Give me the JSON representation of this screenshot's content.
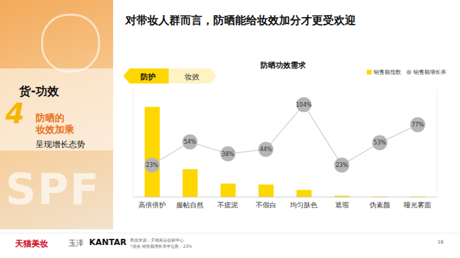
{
  "slide": {
    "title": "对带妆人群而言，防晒能给妆效加分才更受欢迎",
    "page": "16",
    "panel": {
      "section": "货-功效",
      "number": "4",
      "headline": [
        "防晒的",
        "妆效加乘"
      ],
      "subline": "呈现增长态势",
      "bg_text": "SPF"
    },
    "footer": {
      "logos": [
        "天猫美妆",
        "玉泽",
        "KANTAR"
      ],
      "notes": [
        "数据来源：天猫新品创新中心",
        "*虚点 销售额增长率中位数：23%"
      ]
    }
  },
  "chart_data": {
    "type": "bar",
    "title": "防晒功效需求",
    "annotations": [
      "防护",
      "妆效"
    ],
    "categories": [
      "高倍倍护",
      "服帖自然",
      "不搓泥",
      "不假白",
      "均匀肤色",
      "遮瑕",
      "伪素颜",
      "哑光雾面"
    ],
    "series": [
      {
        "name": "销售额指数",
        "type": "bar",
        "color": "#FFD700",
        "values": [
          100,
          31,
          15,
          14,
          8,
          1.5,
          0.8,
          0.8
        ]
      },
      {
        "name": "销售额增长率",
        "type": "line",
        "axis": "y2",
        "color": "#B5B5B5",
        "marker": "circle",
        "data_labels": true,
        "values": [
          23,
          54,
          38,
          44,
          104,
          23,
          53,
          77
        ],
        "value_labels": [
          "23%",
          "54%",
          "38%",
          "44%",
          "104%",
          "23%",
          "53%",
          "77%"
        ]
      }
    ],
    "ylim": [
      0,
      120
    ],
    "yticks": [],
    "y2lim": [
      -20,
      125
    ],
    "y2ticks": [],
    "tick_labels": "x",
    "legend": "top-right",
    "grid": false
  }
}
